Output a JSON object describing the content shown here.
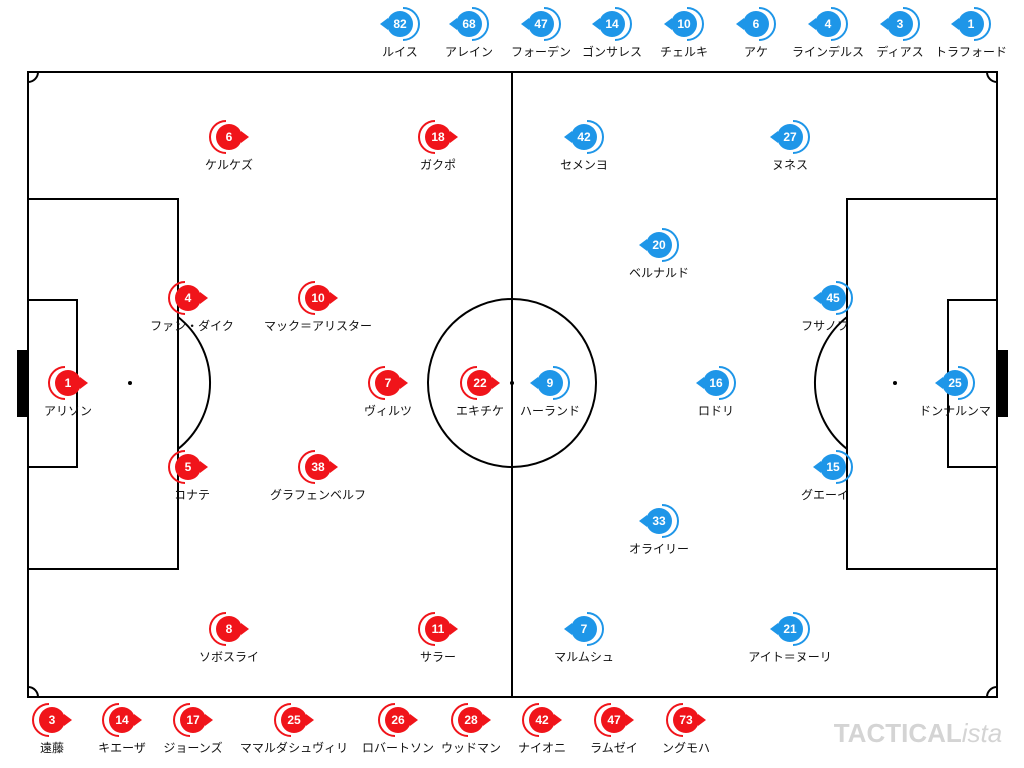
{
  "home": {
    "starters": [
      {
        "number": "1",
        "name": "アリソン"
      },
      {
        "number": "4",
        "name": "ファン・ダイク"
      },
      {
        "number": "5",
        "name": "コナテ"
      },
      {
        "number": "6",
        "name": "ケルケズ"
      },
      {
        "number": "8",
        "name": "ソボスライ"
      },
      {
        "number": "10",
        "name": "マック＝アリスター"
      },
      {
        "number": "38",
        "name": "グラフェンベルフ"
      },
      {
        "number": "7",
        "name": "ヴィルツ"
      },
      {
        "number": "18",
        "name": "ガクポ"
      },
      {
        "number": "11",
        "name": "サラー"
      },
      {
        "number": "22",
        "name": "エキチケ"
      }
    ],
    "subs": [
      {
        "number": "3",
        "name": "遠藤"
      },
      {
        "number": "14",
        "name": "キエーザ"
      },
      {
        "number": "17",
        "name": "ジョーンズ"
      },
      {
        "number": "25",
        "name": "ママルダシュヴィリ"
      },
      {
        "number": "26",
        "name": "ロバートソン"
      },
      {
        "number": "28",
        "name": "ウッドマン"
      },
      {
        "number": "42",
        "name": "ナイオニ"
      },
      {
        "number": "47",
        "name": "ラムゼイ"
      },
      {
        "number": "73",
        "name": "ングモハ"
      }
    ]
  },
  "away": {
    "starters": [
      {
        "number": "25",
        "name": "ドンナルンマ"
      },
      {
        "number": "45",
        "name": "フサノフ"
      },
      {
        "number": "15",
        "name": "グエーイ"
      },
      {
        "number": "42",
        "name": "セメンヨ"
      },
      {
        "number": "27",
        "name": "ヌネス"
      },
      {
        "number": "20",
        "name": "ベルナルド"
      },
      {
        "number": "16",
        "name": "ロドリ"
      },
      {
        "number": "33",
        "name": "オライリー"
      },
      {
        "number": "7",
        "name": "マルムシュ"
      },
      {
        "number": "21",
        "name": "アイト＝ヌーリ"
      },
      {
        "number": "9",
        "name": "ハーランド"
      }
    ],
    "subs": [
      {
        "number": "82",
        "name": "ルイス"
      },
      {
        "number": "68",
        "name": "アレイン"
      },
      {
        "number": "47",
        "name": "フォーデン"
      },
      {
        "number": "14",
        "name": "ゴンサレス"
      },
      {
        "number": "10",
        "name": "チェルキ"
      },
      {
        "number": "6",
        "name": "アケ"
      },
      {
        "number": "4",
        "name": "ラインデルス"
      },
      {
        "number": "3",
        "name": "ディアス"
      },
      {
        "number": "1",
        "name": "トラフォード"
      }
    ]
  },
  "brand": {
    "main": "TACTICAL",
    "suffix": "ista"
  }
}
